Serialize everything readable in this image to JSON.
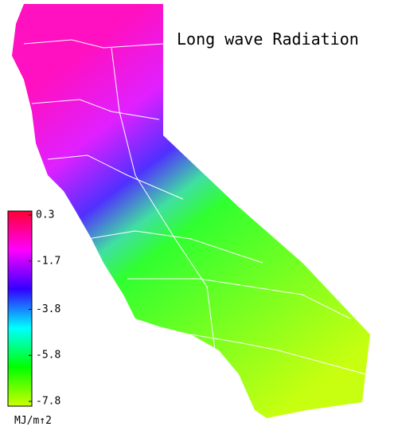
{
  "title": "Long wave Radiation",
  "legend": {
    "range": [
      -7.8,
      0.3
    ],
    "ticks": [
      0.3,
      -1.7,
      -3.8,
      -5.8,
      -7.8
    ],
    "unit": "MJ/m↑2",
    "colors": [
      "#ff0033",
      "#ff00ff",
      "#3300ff",
      "#00ffff",
      "#00ff00",
      "#ccff00"
    ]
  }
}
